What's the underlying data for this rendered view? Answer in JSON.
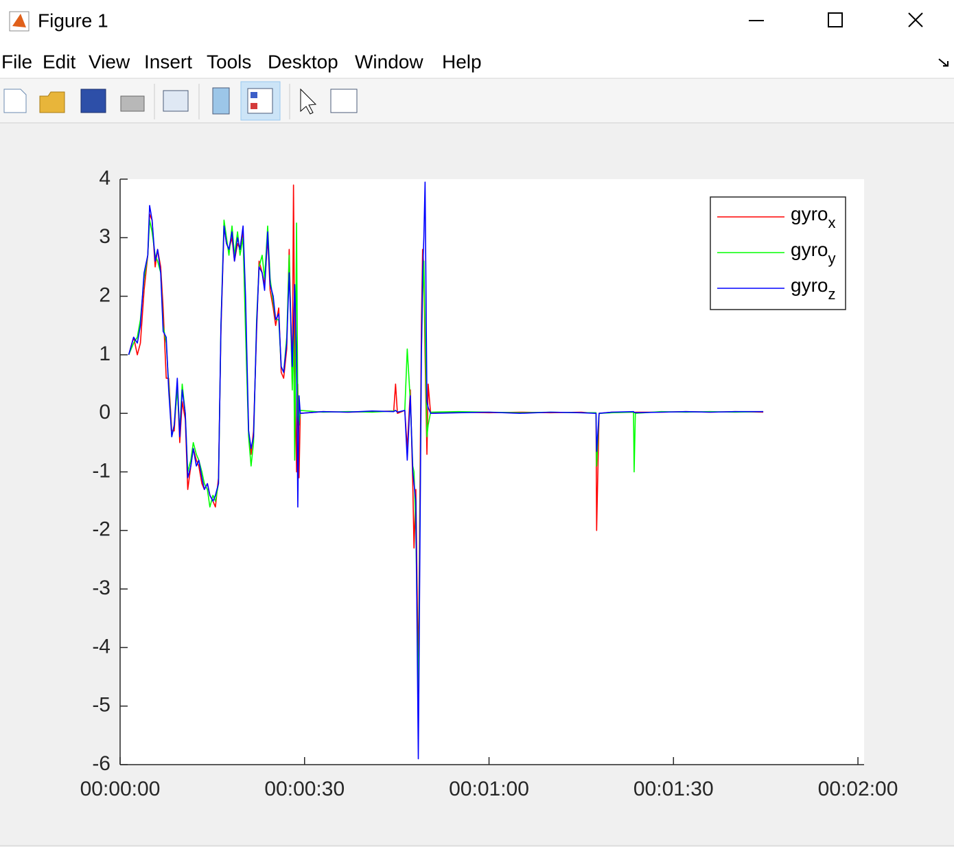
{
  "window": {
    "title": "Figure 1",
    "menu": [
      "File",
      "Edit",
      "View",
      "Insert",
      "Tools",
      "Desktop",
      "Window",
      "Help"
    ]
  },
  "chart_data": {
    "type": "line",
    "x": [
      1.4,
      2.2,
      2.8,
      3.3,
      3.9,
      4.5,
      4.8,
      5.2,
      5.7,
      6.1,
      6.6,
      7.0,
      7.5,
      7.9,
      8.4,
      8.8,
      9.3,
      9.7,
      10.1,
      10.6,
      11.0,
      11.5,
      11.9,
      12.4,
      12.8,
      13.3,
      13.7,
      14.2,
      14.6,
      15.1,
      15.5,
      16.0,
      16.4,
      16.9,
      17.3,
      17.7,
      18.2,
      18.6,
      19.1,
      19.5,
      20.0,
      20.4,
      20.9,
      21.3,
      21.7,
      22.2,
      22.6,
      23.1,
      23.5,
      24.0,
      24.4,
      24.9,
      25.3,
      25.8,
      26.2,
      26.6,
      27.1,
      27.5,
      28.0,
      28.2,
      28.4,
      28.7,
      28.9,
      29.1,
      29.3,
      33,
      37,
      41,
      44.5,
      44.8,
      45.1,
      46.3,
      46.7,
      47.2,
      47.6,
      47.8,
      48.1,
      48.5,
      49.0,
      49.2,
      49.4,
      49.6,
      49.9,
      50.1,
      50.5,
      55,
      60,
      65,
      70,
      75,
      77.4,
      77.5,
      77.9,
      80,
      83.5,
      83.6,
      83.8,
      88,
      92,
      96,
      100,
      104.6
    ],
    "series": [
      {
        "name": "gyro_x",
        "color": "#ff0000",
        "values": [
          1.0,
          1.3,
          1.0,
          1.2,
          2.1,
          2.7,
          3.4,
          3.3,
          2.5,
          2.8,
          2.5,
          1.8,
          0.6,
          0.6,
          -0.3,
          -0.3,
          0.5,
          -0.5,
          0.2,
          -0.1,
          -1.3,
          -0.9,
          -0.6,
          -0.8,
          -0.9,
          -1.2,
          -1.3,
          -1.2,
          -1.4,
          -1.5,
          -1.6,
          -1.1,
          1.4,
          3.2,
          2.9,
          2.8,
          3.0,
          2.6,
          2.9,
          2.8,
          3.1,
          1.5,
          -0.3,
          -0.7,
          -0.3,
          1.4,
          2.6,
          2.4,
          2.2,
          3.0,
          2.1,
          1.8,
          1.5,
          1.8,
          0.7,
          0.6,
          1.1,
          2.8,
          0.5,
          3.9,
          1.0,
          -1.0,
          0.5,
          -1.1,
          0.0,
          0.03,
          0.02,
          0.03,
          0.04,
          0.5,
          0.0,
          0.05,
          -0.6,
          0.4,
          -1.2,
          -2.3,
          -1.3,
          -4.5,
          1.5,
          2.8,
          2.5,
          1.0,
          -0.7,
          0.5,
          0.0,
          0.02,
          0.01,
          0.02,
          0.01,
          0.02,
          0.0,
          -2.0,
          0.0,
          0.02,
          0.02,
          0.01,
          0.02,
          0.02,
          0.03,
          0.02,
          0.03,
          0.02
        ]
      },
      {
        "name": "gyro_y",
        "color": "#00ff00",
        "values": [
          1.0,
          1.2,
          1.3,
          1.6,
          2.3,
          2.7,
          3.3,
          3.1,
          2.7,
          2.6,
          2.4,
          1.5,
          1.2,
          0.5,
          -0.4,
          -0.2,
          0.4,
          -0.3,
          0.5,
          0.0,
          -1.0,
          -0.8,
          -0.5,
          -0.7,
          -0.8,
          -1.0,
          -1.2,
          -1.3,
          -1.6,
          -1.4,
          -1.5,
          -1.2,
          1.5,
          3.3,
          3.0,
          2.7,
          3.2,
          2.7,
          3.1,
          2.7,
          3.0,
          1.4,
          -0.4,
          -0.9,
          -0.5,
          1.6,
          2.5,
          2.7,
          2.3,
          3.2,
          2.3,
          1.9,
          1.6,
          1.6,
          0.8,
          0.7,
          1.3,
          2.7,
          0.4,
          1.5,
          -0.8,
          3.25,
          0.0,
          -0.2,
          0.05,
          0.02,
          0.03,
          0.02,
          0.04,
          0.05,
          0.02,
          0.05,
          1.1,
          0.2,
          -0.9,
          -1.0,
          -2.0,
          -5.0,
          1.0,
          2.0,
          2.6,
          1.5,
          -0.4,
          -0.2,
          0.02,
          0.03,
          0.02,
          0.01,
          0.02,
          0.01,
          0.01,
          -0.9,
          0.0,
          0.01,
          0.02,
          -1.0,
          0.0,
          0.03,
          0.02,
          0.03,
          0.02,
          0.03
        ]
      },
      {
        "name": "gyro_z",
        "color": "#0000ff",
        "values": [
          1.0,
          1.3,
          1.2,
          1.5,
          2.4,
          2.7,
          3.55,
          3.3,
          2.6,
          2.8,
          2.4,
          1.4,
          1.3,
          0.4,
          -0.4,
          -0.2,
          0.6,
          -0.4,
          0.4,
          0.0,
          -1.1,
          -0.9,
          -0.6,
          -0.9,
          -0.8,
          -1.1,
          -1.3,
          -1.2,
          -1.4,
          -1.5,
          -1.4,
          -1.2,
          1.5,
          3.2,
          2.9,
          2.8,
          3.1,
          2.6,
          3.0,
          2.8,
          3.2,
          2.0,
          -0.3,
          -0.6,
          -0.4,
          1.5,
          2.5,
          2.4,
          2.1,
          3.1,
          2.2,
          2.0,
          1.6,
          1.7,
          0.8,
          0.7,
          1.2,
          2.4,
          0.8,
          1.5,
          2.2,
          1.0,
          -1.6,
          0.3,
          0.0,
          0.03,
          0.02,
          0.04,
          0.03,
          0.05,
          0.02,
          0.05,
          -0.8,
          0.3,
          -1.0,
          -1.2,
          -1.5,
          -5.9,
          1.0,
          2.4,
          3.0,
          3.95,
          0.2,
          0.1,
          0.0,
          0.01,
          0.02,
          0.0,
          0.02,
          0.01,
          0.0,
          -0.65,
          0.0,
          0.02,
          0.03,
          0.02,
          0.01,
          0.02,
          0.03,
          0.02,
          0.03,
          0.03
        ]
      }
    ],
    "xlim": [
      0,
      121
    ],
    "xticks": [
      {
        "value": 0,
        "label": "00:00:00"
      },
      {
        "value": 30,
        "label": "00:00:30"
      },
      {
        "value": 60,
        "label": "00:01:00"
      },
      {
        "value": 90,
        "label": "00:01:30"
      },
      {
        "value": 120,
        "label": "00:02:00"
      }
    ],
    "ylim": [
      -6,
      4
    ],
    "yticks": [
      -6,
      -5,
      -4,
      -3,
      -2,
      -1,
      0,
      1,
      2,
      3,
      4
    ],
    "legend": "top-right"
  }
}
